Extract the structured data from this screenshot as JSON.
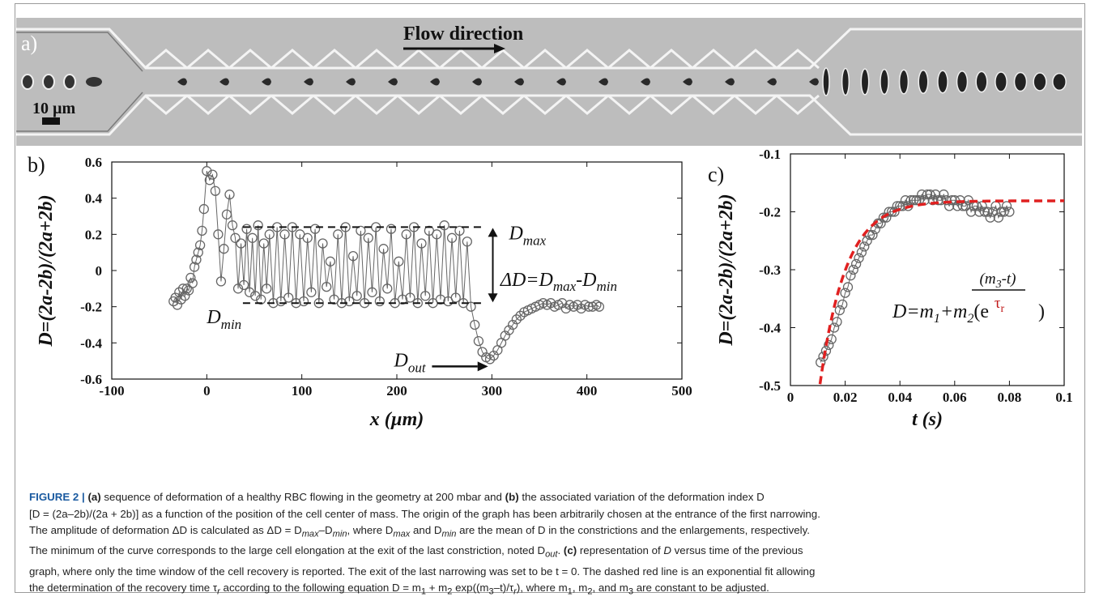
{
  "panel_a": {
    "label": "a)",
    "flow_label": "Flow direction",
    "scale_label": "10 µm"
  },
  "chart_data": [
    {
      "id": "b",
      "type": "scatter",
      "panel_label": "b)",
      "xlabel": "x (µm)",
      "ylabel": "D=(2a-2b)/(2a+2b)",
      "xlim": [
        -100,
        500
      ],
      "ylim": [
        -0.6,
        0.6
      ],
      "xticks": [
        -100,
        0,
        100,
        200,
        300,
        400,
        500
      ],
      "xtick_labels": [
        "-100",
        "0",
        "100",
        "200",
        "300",
        "400",
        "500"
      ],
      "yticks": [
        -0.6,
        -0.4,
        -0.2,
        0,
        0.2,
        0.4,
        0.6
      ],
      "ytick_labels": [
        "-0.6",
        "-0.4",
        "-0.2",
        "0",
        "0.2",
        "0.4",
        "0.6"
      ],
      "series": [
        {
          "x": [
            -35,
            -33,
            -31,
            -29,
            -27,
            -25,
            -23,
            -21,
            -19,
            -17,
            -15,
            -13,
            -11,
            -9,
            -7,
            -5,
            -3,
            0,
            3,
            6,
            9,
            12,
            15,
            18,
            21,
            24,
            27,
            30,
            33,
            36,
            39,
            42,
            45,
            48,
            51,
            54,
            57,
            60,
            63,
            66,
            70,
            74,
            78,
            82,
            86,
            90,
            94,
            98,
            102,
            106,
            110,
            114,
            118,
            122,
            126,
            130,
            134,
            138,
            142,
            146,
            150,
            154,
            158,
            162,
            166,
            170,
            174,
            178,
            182,
            186,
            190,
            194,
            198,
            202,
            206,
            210,
            214,
            218,
            222,
            226,
            230,
            234,
            238,
            242,
            246,
            250,
            254,
            258,
            262,
            266,
            270,
            274,
            278,
            282,
            286,
            290,
            294,
            298,
            302,
            306,
            310,
            314,
            318,
            322,
            326,
            330,
            334,
            338,
            342,
            346,
            350,
            354,
            358,
            362,
            366,
            370,
            374,
            378,
            382,
            386,
            390,
            394,
            398,
            402,
            406,
            410,
            413
          ],
          "y": [
            -0.17,
            -0.15,
            -0.19,
            -0.12,
            -0.16,
            -0.1,
            -0.14,
            -0.1,
            -0.11,
            -0.04,
            -0.07,
            0.02,
            0.06,
            0.1,
            0.14,
            0.22,
            0.34,
            0.55,
            0.5,
            0.53,
            0.44,
            0.2,
            -0.06,
            0.12,
            0.31,
            0.42,
            0.25,
            0.18,
            -0.1,
            0.15,
            -0.08,
            0.23,
            -0.12,
            0.18,
            -0.14,
            0.25,
            -0.16,
            0.15,
            -0.1,
            0.2,
            -0.18,
            0.24,
            -0.17,
            0.2,
            -0.15,
            0.24,
            -0.18,
            0.2,
            -0.17,
            0.18,
            -0.12,
            0.23,
            -0.18,
            0.15,
            -0.09,
            0.05,
            -0.16,
            0.2,
            -0.18,
            0.24,
            -0.17,
            0.08,
            -0.14,
            0.22,
            -0.18,
            0.18,
            -0.12,
            0.24,
            -0.17,
            0.12,
            -0.1,
            0.23,
            -0.18,
            0.05,
            -0.16,
            0.2,
            -0.15,
            0.24,
            -0.18,
            0.15,
            -0.14,
            0.22,
            -0.18,
            0.2,
            -0.16,
            0.25,
            -0.17,
            0.18,
            -0.15,
            0.22,
            -0.18,
            0.16,
            -0.2,
            -0.3,
            -0.39,
            -0.45,
            -0.48,
            -0.49,
            -0.47,
            -0.44,
            -0.4,
            -0.36,
            -0.33,
            -0.3,
            -0.27,
            -0.25,
            -0.23,
            -0.22,
            -0.21,
            -0.2,
            -0.19,
            -0.18,
            -0.19,
            -0.18,
            -0.2,
            -0.19,
            -0.18,
            -0.21,
            -0.19,
            -0.2,
            -0.19,
            -0.21,
            -0.19,
            -0.2,
            -0.2,
            -0.19,
            -0.2
          ]
        }
      ],
      "annotations": {
        "dmax_level": 0.24,
        "dmin_level": -0.18,
        "dmax_label": "max",
        "dmin_label": "min",
        "dout_label": "out",
        "delta_label": "ΔD=D",
        "delta_label_mid": "-D",
        "symbol": "D"
      }
    },
    {
      "id": "c",
      "type": "scatter",
      "panel_label": "c)",
      "xlabel": "t (s)",
      "ylabel": "D=(2a-2b)/(2a+2b)",
      "xlim": [
        0,
        0.1
      ],
      "ylim": [
        -0.5,
        -0.1
      ],
      "xticks": [
        0,
        0.02,
        0.04,
        0.06,
        0.08,
        0.1
      ],
      "xtick_labels": [
        "0",
        "0.02",
        "0.04",
        "0.06",
        "0.08",
        "0.1"
      ],
      "yticks": [
        -0.5,
        -0.4,
        -0.3,
        -0.2,
        -0.1
      ],
      "ytick_labels": [
        "-0.5",
        "-0.4",
        "-0.3",
        "-0.2",
        "-0.1"
      ],
      "series": [
        {
          "x": [
            0.011,
            0.012,
            0.013,
            0.014,
            0.015,
            0.016,
            0.017,
            0.018,
            0.019,
            0.02,
            0.021,
            0.022,
            0.023,
            0.024,
            0.025,
            0.026,
            0.027,
            0.028,
            0.029,
            0.03,
            0.031,
            0.032,
            0.033,
            0.034,
            0.035,
            0.036,
            0.037,
            0.038,
            0.039,
            0.04,
            0.041,
            0.042,
            0.043,
            0.044,
            0.045,
            0.046,
            0.047,
            0.048,
            0.049,
            0.05,
            0.051,
            0.052,
            0.053,
            0.054,
            0.055,
            0.056,
            0.057,
            0.058,
            0.059,
            0.06,
            0.061,
            0.062,
            0.063,
            0.064,
            0.065,
            0.066,
            0.067,
            0.068,
            0.069,
            0.07,
            0.071,
            0.072,
            0.073,
            0.074,
            0.075,
            0.076,
            0.077,
            0.078,
            0.079,
            0.08
          ],
          "y": [
            -0.46,
            -0.45,
            -0.44,
            -0.43,
            -0.42,
            -0.4,
            -0.39,
            -0.37,
            -0.36,
            -0.34,
            -0.33,
            -0.31,
            -0.3,
            -0.29,
            -0.28,
            -0.27,
            -0.26,
            -0.25,
            -0.24,
            -0.24,
            -0.23,
            -0.22,
            -0.22,
            -0.21,
            -0.21,
            -0.2,
            -0.2,
            -0.2,
            -0.19,
            -0.19,
            -0.19,
            -0.18,
            -0.19,
            -0.18,
            -0.18,
            -0.18,
            -0.18,
            -0.17,
            -0.18,
            -0.17,
            -0.17,
            -0.18,
            -0.17,
            -0.18,
            -0.18,
            -0.17,
            -0.18,
            -0.19,
            -0.18,
            -0.18,
            -0.19,
            -0.18,
            -0.19,
            -0.19,
            -0.18,
            -0.2,
            -0.19,
            -0.19,
            -0.2,
            -0.19,
            -0.2,
            -0.2,
            -0.21,
            -0.2,
            -0.19,
            -0.21,
            -0.2,
            -0.2,
            -0.19,
            -0.2
          ]
        }
      ],
      "fit": {
        "m1": -0.181,
        "m2": -0.31,
        "m3": 0.011,
        "tau": 0.0095,
        "t_start": 0.0108,
        "t_end": 0.1,
        "color": "#e02020"
      },
      "equation": {
        "lhs": "D=m",
        "sub1": "1",
        "plus": "+m",
        "sub2": "2",
        "open": "(e",
        "exp_num": "(m",
        "exp_num_sub": "3",
        "exp_num_tail": "-t)",
        "exp_den": "τ",
        "exp_den_sub": "r",
        "close": ")"
      }
    }
  ],
  "caption": {
    "fig_label": "FIGURE 2 |",
    "s1": " (a)",
    "s2": " sequence of deformation of a healthy RBC flowing in the geometry at 200 mbar and ",
    "s3": "(b)",
    "s4": " the associated variation of the deformation index D",
    "line2": "[D = (2a–2b)/(2a + 2b)] as a function of the position of the cell center of mass. The origin of the graph has been arbitrarily chosen at the entrance of the first narrowing.",
    "l3a": "The amplitude of deformation ΔD is calculated as ΔD = D",
    "l3b": "max",
    "l3c": "–D",
    "l3d": "min",
    "l3e": ", where D",
    "l3f": "max",
    "l3g": " and D",
    "l3h": "min",
    "l3i": " are the mean of D in the constrictions and the enlargements, respectively.",
    "l4a": "The minimum of the curve corresponds to the large cell elongation at the exit of the last constriction, noted D",
    "l4b": "out",
    "l4c": ". ",
    "l4d": "(c)",
    "l4e": " representation of ",
    "l4f": "D",
    "l4g": " versus time of the previous",
    "line5": "graph, where only the time window of the cell recovery is reported. The exit of the last narrowing was set to be t = 0. The dashed red line is an exponential fit allowing",
    "l6a": "the determination of the recovery time τ",
    "l6b": "r",
    "l6c": " according to the following equation D = m",
    "l6d": "1",
    "l6e": " + m",
    "l6f": "2",
    "l6g": " exp((m",
    "l6h": "3",
    "l6i": "–t)/τ",
    "l6j": "r",
    "l6k": "), where m",
    "l6l": "1",
    "l6m": ", m",
    "l6n": "2",
    "l6o": ", and m",
    "l6p": "3",
    "l6q": " are constant to be adjusted."
  }
}
